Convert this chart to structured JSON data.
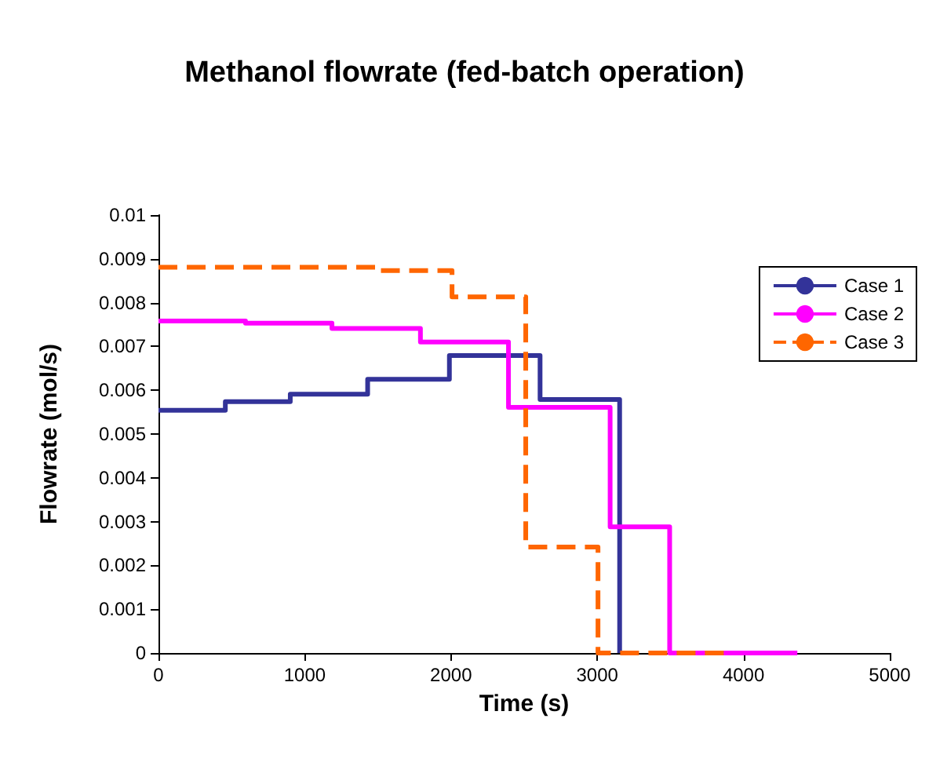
{
  "chart_data": {
    "type": "step",
    "title": "Methanol flowrate (fed-batch operation)",
    "xlabel": "Time (s)",
    "ylabel": "Flowrate (mol/s)",
    "series": [
      {
        "name": "Case 1",
        "color": "#333399",
        "x": [
          0,
          457,
          901,
          1430,
          1989,
          2609,
          3153
        ],
        "values": [
          0.00554,
          0.00574,
          0.00591,
          0.00625,
          0.00679,
          0.00579,
          0
        ]
      },
      {
        "name": "Case 2",
        "color": "#ff00ff",
        "x": [
          0,
          595,
          1186,
          1791,
          2393,
          3088,
          3495,
          4368
        ],
        "values": [
          0.00758,
          0.00753,
          0.00741,
          0.0071,
          0.00561,
          0.00288,
          0,
          0
        ]
      },
      {
        "name": "Case 3",
        "color": "#ff6600",
        "line_style": "dashed",
        "x": [
          0,
          1495,
          2007,
          2511,
          3005,
          3892
        ],
        "values": [
          0.00881,
          0.00873,
          0.00813,
          0.00242,
          0,
          0
        ]
      }
    ],
    "xlim": [
      0,
      5000
    ],
    "xticks": [
      0,
      1000,
      2000,
      3000,
      4000,
      5000
    ],
    "ylim": [
      0,
      0.01
    ],
    "yticks": [
      0,
      0.001,
      0.002,
      0.003,
      0.004,
      0.005,
      0.006,
      0.007,
      0.008,
      0.009,
      0.01
    ],
    "grid": false,
    "legend": "right",
    "marker": "none",
    "line_style": "solid"
  }
}
